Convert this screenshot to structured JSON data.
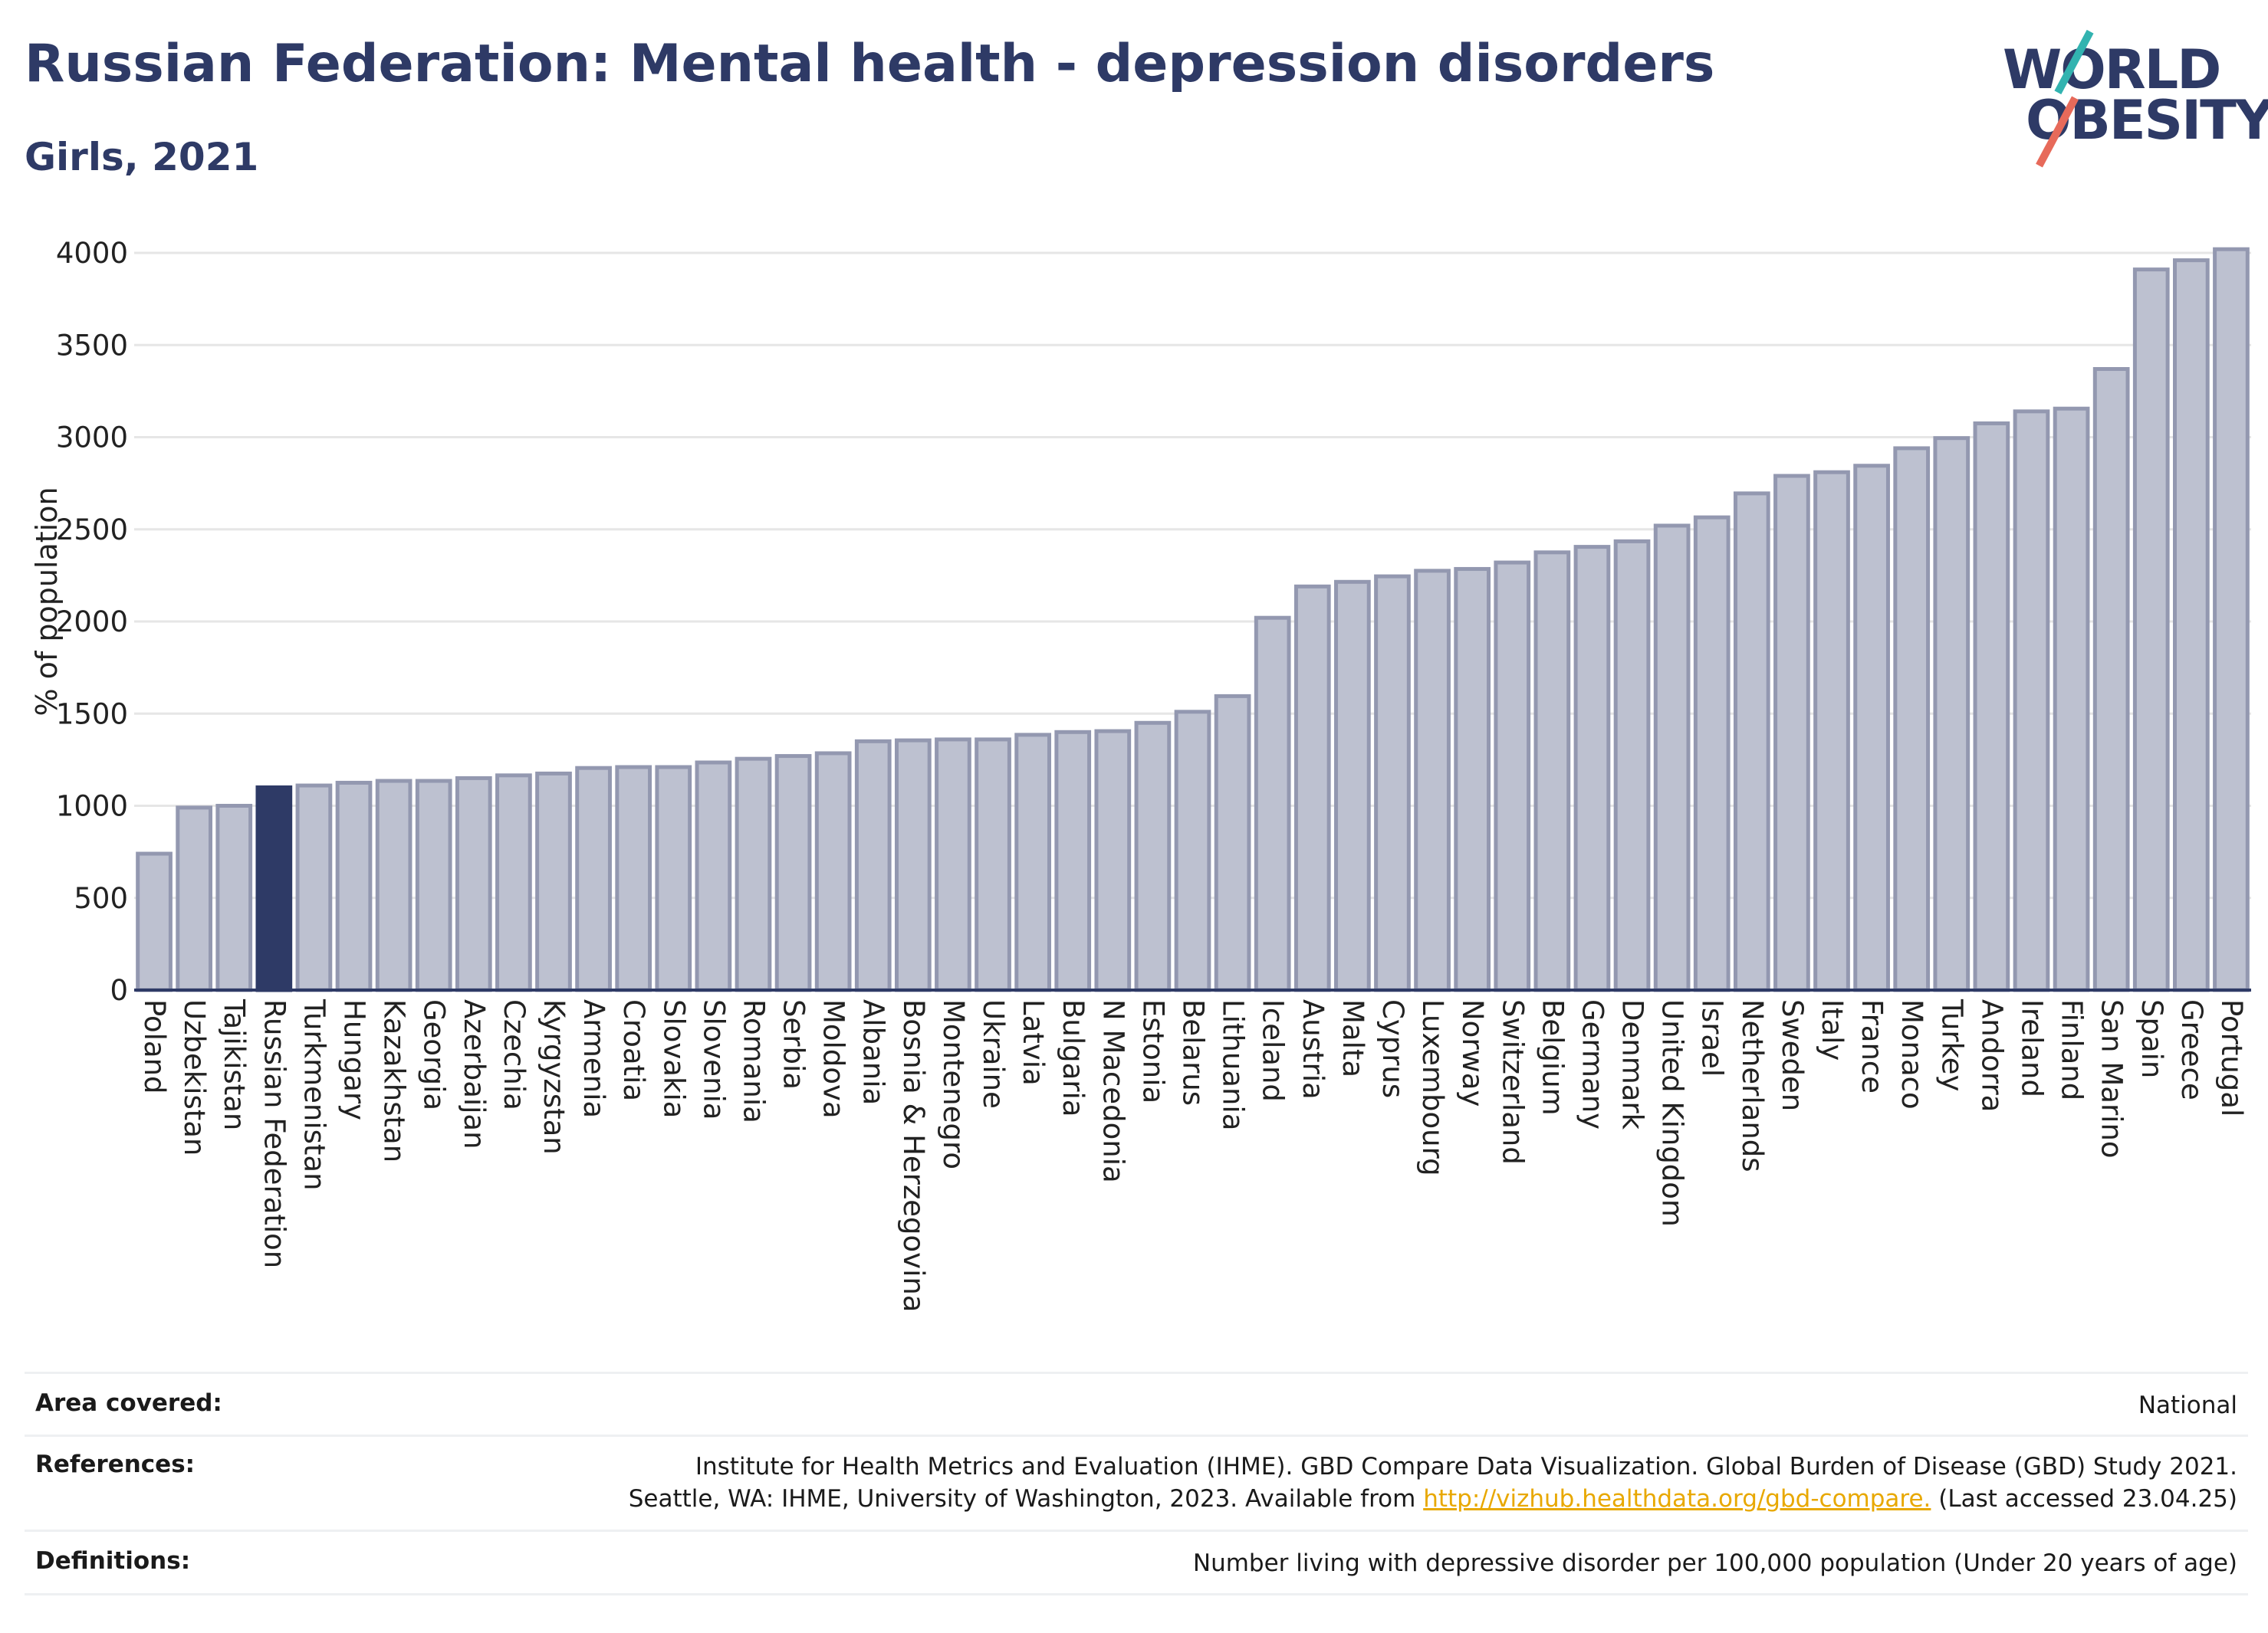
{
  "header": {
    "title": "Russian Federation: Mental health - depression disorders",
    "subtitle": "Girls, 2021"
  },
  "logo": {
    "line1": "WORLD",
    "line2": "OBESITY"
  },
  "colors": {
    "bar": "#bdc1d0",
    "bar_stroke": "#9398b0",
    "highlight": "#2e3a66",
    "grid": "#e6e6e6",
    "axis": "#2e3a66"
  },
  "chart_data": {
    "type": "bar",
    "ylabel": "% of population",
    "xlabel": "",
    "ylim": [
      0,
      4000
    ],
    "yticks": [
      0,
      500,
      1000,
      1500,
      2000,
      2500,
      3000,
      3500,
      4000
    ],
    "grid": true,
    "highlight": "Russian Federation",
    "categories": [
      "Poland",
      "Uzbekistan",
      "Tajikistan",
      "Russian Federation",
      "Turkmenistan",
      "Hungary",
      "Kazakhstan",
      "Georgia",
      "Azerbaijan",
      "Czechia",
      "Kyrgyzstan",
      "Armenia",
      "Croatia",
      "Slovakia",
      "Slovenia",
      "Romania",
      "Serbia",
      "Moldova",
      "Albania",
      "Bosnia & Herzegovina",
      "Montenegro",
      "Ukraine",
      "Latvia",
      "Bulgaria",
      "N Macedonia",
      "Estonia",
      "Belarus",
      "Lithuania",
      "Iceland",
      "Austria",
      "Malta",
      "Cyprus",
      "Luxembourg",
      "Norway",
      "Switzerland",
      "Belgium",
      "Germany",
      "Denmark",
      "United Kingdom",
      "Israel",
      "Netherlands",
      "Sweden",
      "Italy",
      "France",
      "Monaco",
      "Turkey",
      "Andorra",
      "Ireland",
      "Finland",
      "San Marino",
      "Spain",
      "Greece",
      "Portugal"
    ],
    "values": [
      740,
      990,
      1000,
      1100,
      1110,
      1125,
      1135,
      1135,
      1150,
      1165,
      1175,
      1205,
      1210,
      1210,
      1235,
      1255,
      1270,
      1285,
      1350,
      1355,
      1360,
      1360,
      1385,
      1400,
      1405,
      1450,
      1510,
      1595,
      2020,
      2190,
      2215,
      2245,
      2275,
      2285,
      2320,
      2375,
      2405,
      2435,
      2520,
      2565,
      2695,
      2790,
      2810,
      2845,
      2940,
      2995,
      3075,
      3140,
      3155,
      3370,
      3910,
      3960,
      4020
    ]
  },
  "footer": {
    "area_label": "Area covered:",
    "area_value": "National",
    "references_label": "References:",
    "references_line1": "Institute for Health Metrics and Evaluation (IHME). GBD Compare Data Visualization. Global Burden of Disease (GBD) Study 2021.",
    "references_line2_pre": "Seattle, WA: IHME, University of Washington, 2023. Available from ",
    "references_link": "http://vizhub.healthdata.org/gbd-compare.",
    "references_line2_post": " (Last accessed 23.04.25)",
    "definitions_label": "Definitions:",
    "definitions_value": "Number living with depressive disorder per 100,000 population (Under 20 years of age)"
  }
}
